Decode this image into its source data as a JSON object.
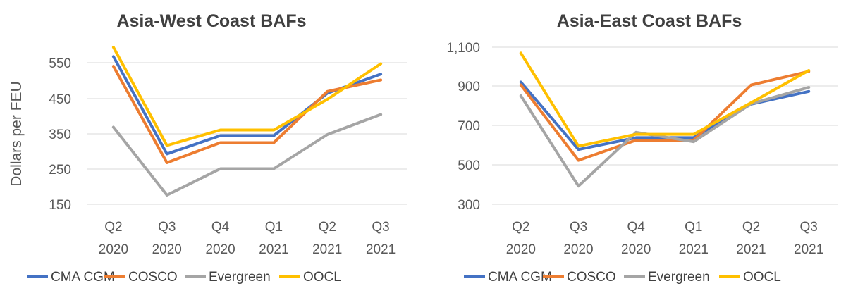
{
  "chart_data": [
    {
      "type": "line",
      "title": "Asia-West Coast BAFs",
      "ylabel": "Dollars per FEU",
      "xlabel": "",
      "categories": [
        [
          "Q2",
          "2020"
        ],
        [
          "Q3",
          "2020"
        ],
        [
          "Q4",
          "2020"
        ],
        [
          "Q1",
          "2021"
        ],
        [
          "Q2",
          "2021"
        ],
        [
          "Q3",
          "2021"
        ]
      ],
      "ylim": [
        150,
        600
      ],
      "yticks": [
        150,
        250,
        350,
        450,
        550
      ],
      "ytick_labels": [
        "150",
        "250",
        "350",
        "450",
        "550"
      ],
      "grid": true,
      "series": [
        {
          "name": "CMA CGM",
          "color": "#4472C4",
          "values": [
            567,
            293,
            345,
            345,
            465,
            518
          ]
        },
        {
          "name": "COSCO",
          "color": "#ED7D31",
          "values": [
            540,
            268,
            325,
            325,
            470,
            502
          ]
        },
        {
          "name": "Evergreen",
          "color": "#A5A5A5",
          "values": [
            369,
            176,
            251,
            251,
            348,
            405
          ]
        },
        {
          "name": "OOCL",
          "color": "#FFC000",
          "values": [
            593,
            317,
            361,
            361,
            448,
            547
          ]
        }
      ]
    },
    {
      "type": "line",
      "title": "Asia-East Coast BAFs",
      "ylabel": "",
      "xlabel": "",
      "categories": [
        [
          "Q2",
          "2020"
        ],
        [
          "Q3",
          "2020"
        ],
        [
          "Q4",
          "2020"
        ],
        [
          "Q1",
          "2021"
        ],
        [
          "Q2",
          "2021"
        ],
        [
          "Q3",
          "2021"
        ]
      ],
      "ylim": [
        300,
        1100
      ],
      "yticks": [
        300,
        500,
        700,
        900,
        1100
      ],
      "ytick_labels": [
        "300",
        "500",
        "700",
        "900",
        "1,100"
      ],
      "grid": true,
      "series": [
        {
          "name": "CMA CGM",
          "color": "#4472C4",
          "values": [
            920,
            578,
            638,
            638,
            808,
            872
          ]
        },
        {
          "name": "COSCO",
          "color": "#ED7D31",
          "values": [
            905,
            523,
            625,
            625,
            905,
            975
          ]
        },
        {
          "name": "Evergreen",
          "color": "#A5A5A5",
          "values": [
            850,
            392,
            665,
            617,
            810,
            893
          ]
        },
        {
          "name": "OOCL",
          "color": "#FFC000",
          "values": [
            1070,
            595,
            655,
            655,
            815,
            980
          ]
        }
      ]
    }
  ]
}
